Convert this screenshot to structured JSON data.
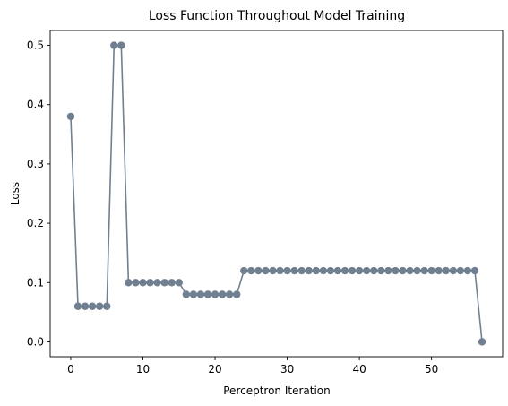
{
  "chart_data": {
    "type": "line",
    "title": "Loss Function Throughout Model Training",
    "xlabel": "Perceptron Iteration",
    "ylabel": "Loss",
    "xlim": [
      -2.85,
      59.85
    ],
    "ylim": [
      -0.025,
      0.525
    ],
    "xticks": [
      0,
      10,
      20,
      30,
      40,
      50
    ],
    "xtick_labels": [
      "0",
      "10",
      "20",
      "30",
      "40",
      "50"
    ],
    "yticks": [
      0.0,
      0.1,
      0.2,
      0.3,
      0.4,
      0.5
    ],
    "ytick_labels": [
      "0.0",
      "0.1",
      "0.2",
      "0.3",
      "0.4",
      "0.5"
    ],
    "grid": false,
    "color": "#708090",
    "markers": true,
    "x": [
      0,
      1,
      2,
      3,
      4,
      5,
      6,
      7,
      8,
      9,
      10,
      11,
      12,
      13,
      14,
      15,
      16,
      17,
      18,
      19,
      20,
      21,
      22,
      23,
      24,
      25,
      26,
      27,
      28,
      29,
      30,
      31,
      32,
      33,
      34,
      35,
      36,
      37,
      38,
      39,
      40,
      41,
      42,
      43,
      44,
      45,
      46,
      47,
      48,
      49,
      50,
      51,
      52,
      53,
      54,
      55,
      56,
      57
    ],
    "y": [
      0.38,
      0.06,
      0.06,
      0.06,
      0.06,
      0.06,
      0.5,
      0.5,
      0.1,
      0.1,
      0.1,
      0.1,
      0.1,
      0.1,
      0.1,
      0.1,
      0.08,
      0.08,
      0.08,
      0.08,
      0.08,
      0.08,
      0.08,
      0.08,
      0.12,
      0.12,
      0.12,
      0.12,
      0.12,
      0.12,
      0.12,
      0.12,
      0.12,
      0.12,
      0.12,
      0.12,
      0.12,
      0.12,
      0.12,
      0.12,
      0.12,
      0.12,
      0.12,
      0.12,
      0.12,
      0.12,
      0.12,
      0.12,
      0.12,
      0.12,
      0.12,
      0.12,
      0.12,
      0.12,
      0.12,
      0.12,
      0.12,
      0.0
    ]
  }
}
